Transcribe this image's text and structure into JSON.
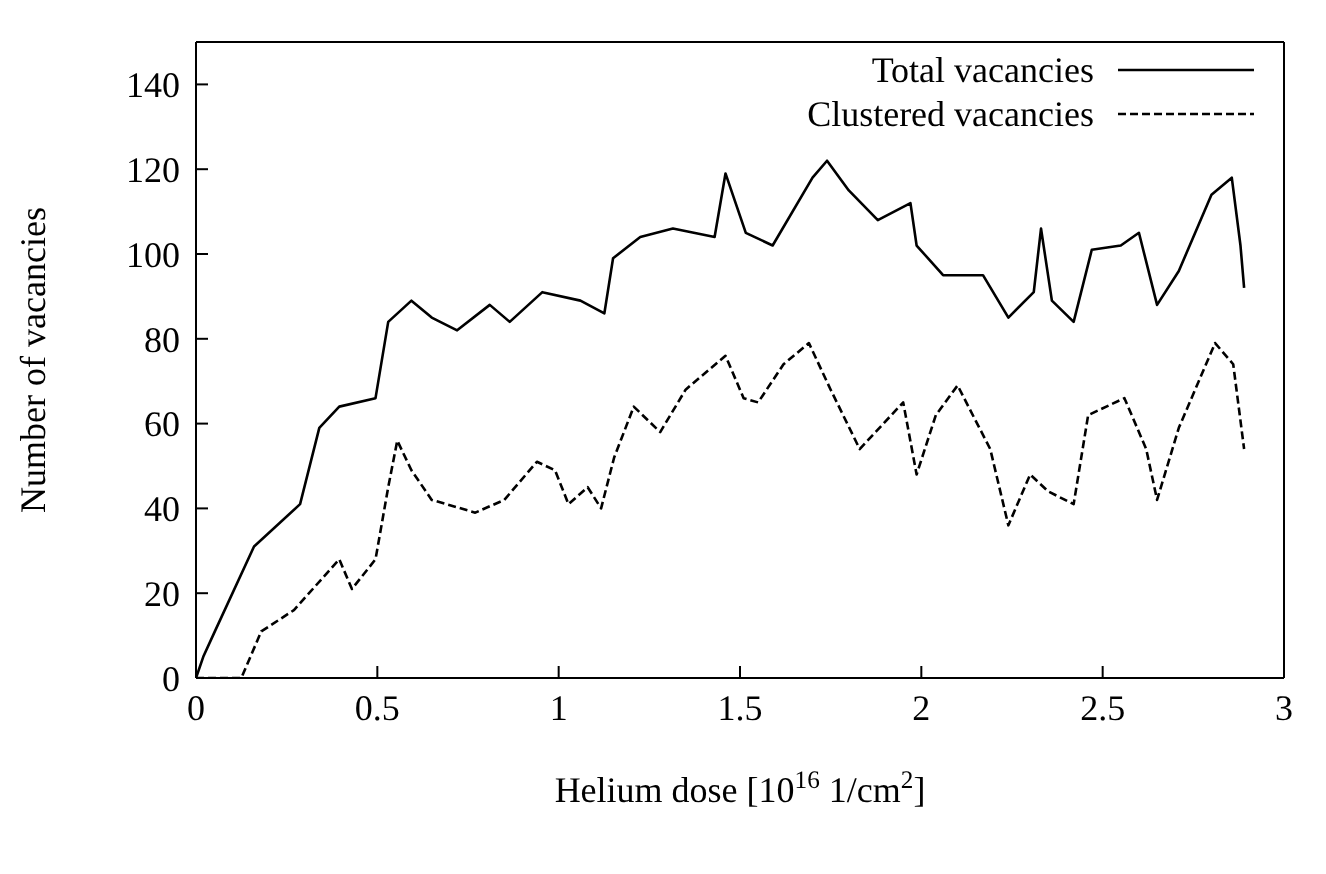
{
  "chart_data": {
    "type": "line",
    "xlabel": "Helium dose [10$^{16}$ 1/cm$^{2}$]",
    "ylabel": "Number of vacancies",
    "xlim": [
      0,
      3
    ],
    "xticks": [
      0,
      0.5,
      1,
      1.5,
      2,
      2.5,
      3
    ],
    "ylim": [
      0,
      150
    ],
    "yticks": [
      0,
      20,
      40,
      60,
      80,
      100,
      120,
      140
    ],
    "legend": "top right",
    "marker": "none",
    "series": [
      {
        "name": "Total vacancies",
        "color": "#000000",
        "line_style": "solid",
        "x": [
          0,
          0.02,
          0.052,
          0.16,
          0.287,
          0.34,
          0.395,
          0.495,
          0.53,
          0.594,
          0.65,
          0.72,
          0.81,
          0.865,
          0.955,
          1.06,
          1.126,
          1.15,
          1.225,
          1.315,
          1.43,
          1.46,
          1.5,
          1.516,
          1.59,
          1.7,
          1.74,
          1.8,
          1.88,
          1.97,
          1.987,
          2.06,
          2.17,
          2.24,
          2.31,
          2.33,
          2.36,
          2.42,
          2.47,
          2.55,
          2.6,
          2.65,
          2.71,
          2.8,
          2.856,
          2.88,
          2.89
        ],
        "values": [
          0,
          5,
          11,
          31,
          41,
          59,
          64,
          66,
          84,
          89,
          85,
          82,
          88,
          84,
          91,
          89,
          86,
          99,
          104,
          106,
          104,
          119,
          109,
          105,
          102,
          118,
          122,
          115,
          108,
          112,
          102,
          95,
          95,
          85,
          91,
          106,
          89,
          84,
          101,
          102,
          105,
          88,
          96,
          114,
          118,
          102,
          92
        ]
      },
      {
        "name": "Clustered vacancies",
        "color": "#000000",
        "line_style": "dashed",
        "x": [
          0,
          0.125,
          0.18,
          0.27,
          0.395,
          0.43,
          0.495,
          0.53,
          0.555,
          0.594,
          0.65,
          0.77,
          0.85,
          0.94,
          0.99,
          1.027,
          1.08,
          1.117,
          1.153,
          1.207,
          1.28,
          1.35,
          1.46,
          1.51,
          1.55,
          1.62,
          1.69,
          1.75,
          1.83,
          1.95,
          1.987,
          2.04,
          2.1,
          2.19,
          2.24,
          2.3,
          2.35,
          2.42,
          2.46,
          2.56,
          2.62,
          2.65,
          2.71,
          2.81,
          2.86,
          2.89
        ],
        "values": [
          0,
          0,
          11,
          16,
          28,
          21,
          28,
          45,
          56,
          49,
          42,
          39,
          42,
          51,
          49,
          41,
          45,
          40,
          52,
          64,
          58,
          68,
          76,
          66,
          65,
          74,
          79,
          68,
          54,
          65,
          48,
          62,
          69,
          54,
          36,
          48,
          44,
          41,
          62,
          66,
          54,
          42,
          59,
          79,
          74,
          54
        ]
      }
    ]
  }
}
